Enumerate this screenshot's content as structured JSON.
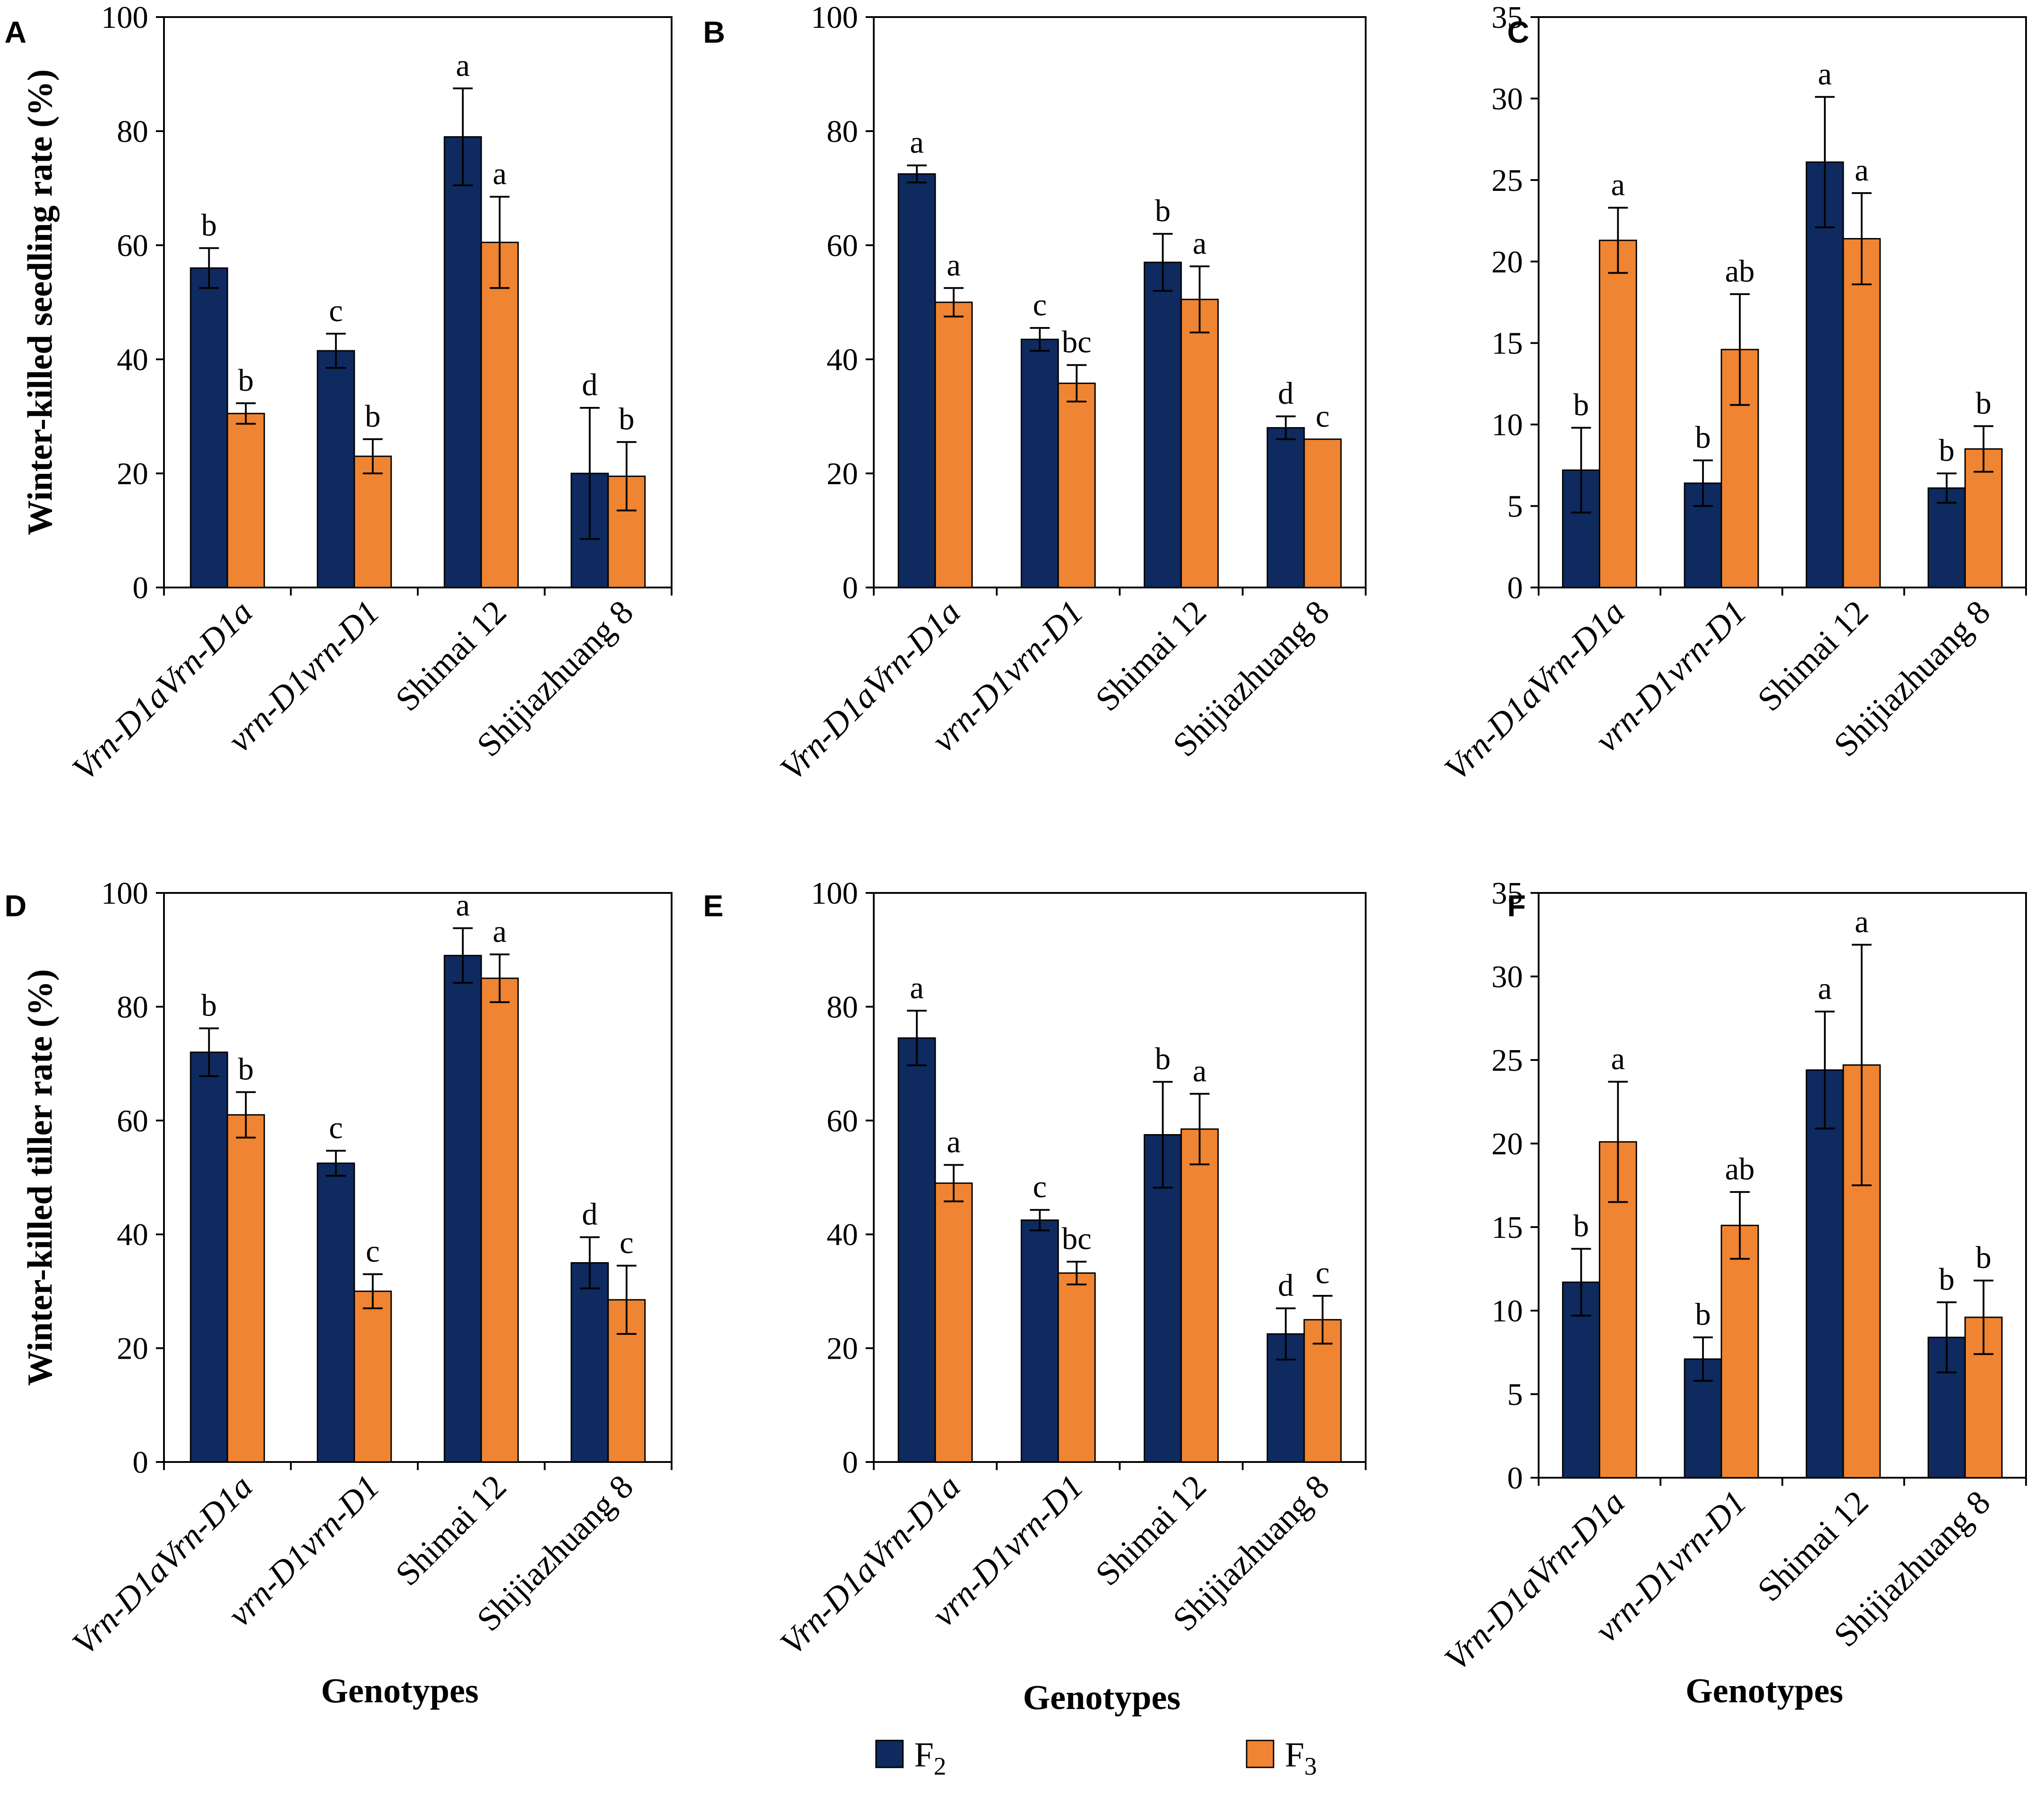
{
  "colors": {
    "F2": "#0e2a5e",
    "F3": "#ef8433"
  },
  "legend": [
    {
      "key": "F2",
      "label": "F",
      "sub": "2"
    },
    {
      "key": "F3",
      "label": "F",
      "sub": "3"
    }
  ],
  "chart_data": [
    {
      "panel": "A",
      "type": "bar",
      "categories": [
        "Vrn-D1aVrn-D1a",
        "vrn-D1vrn-D1",
        "Shimai 12",
        "Shijiazhuang 8"
      ],
      "italic": [
        true,
        true,
        false,
        false
      ],
      "ylabel": "Winter-killed seedling rate (%)",
      "xlabel": "",
      "ylim": [
        0,
        100
      ],
      "yticks": [
        0,
        20,
        40,
        60,
        80,
        100
      ],
      "series": [
        {
          "name": "F2",
          "values": [
            56,
            41.5,
            79,
            20
          ],
          "errors": [
            3.5,
            3,
            8.5,
            11.5
          ],
          "letters": [
            "b",
            "c",
            "a",
            "d"
          ]
        },
        {
          "name": "F3",
          "values": [
            30.5,
            23,
            60.5,
            19.5
          ],
          "errors": [
            1.8,
            3,
            8,
            6
          ],
          "letters": [
            "b",
            "b",
            "a",
            "b"
          ]
        }
      ]
    },
    {
      "panel": "B",
      "type": "bar",
      "categories": [
        "Vrn-D1aVrn-D1a",
        "vrn-D1vrn-D1",
        "Shimai 12",
        "Shijiazhuang 8"
      ],
      "italic": [
        true,
        true,
        false,
        false
      ],
      "ylabel": "",
      "xlabel": "",
      "ylim": [
        0,
        100
      ],
      "yticks": [
        0,
        20,
        40,
        60,
        80,
        100
      ],
      "series": [
        {
          "name": "F2",
          "values": [
            72.5,
            43.5,
            57,
            28
          ],
          "errors": [
            1.5,
            2,
            5,
            2
          ],
          "letters": [
            "a",
            "c",
            "b",
            "d"
          ]
        },
        {
          "name": "F3",
          "values": [
            50,
            35.8,
            50.5,
            26
          ],
          "errors": [
            2.5,
            3.2,
            5.8,
            0
          ],
          "letters": [
            "a",
            "bc",
            "a",
            "c"
          ]
        }
      ]
    },
    {
      "panel": "C",
      "type": "bar",
      "categories": [
        "Vrn-D1aVrn-D1a",
        "vrn-D1vrn-D1",
        "Shimai 12",
        "Shijiazhuang 8"
      ],
      "italic": [
        true,
        true,
        false,
        false
      ],
      "ylabel": "",
      "xlabel": "",
      "ylim": [
        0,
        35
      ],
      "yticks": [
        0,
        5,
        10,
        15,
        20,
        25,
        30,
        35
      ],
      "series": [
        {
          "name": "F2",
          "values": [
            7.2,
            6.4,
            26.1,
            6.1
          ],
          "errors": [
            2.6,
            1.4,
            4,
            0.9
          ],
          "letters": [
            "b",
            "b",
            "a",
            "b"
          ]
        },
        {
          "name": "F3",
          "values": [
            21.3,
            14.6,
            21.4,
            8.5
          ],
          "errors": [
            2,
            3.4,
            2.8,
            1.4
          ],
          "letters": [
            "a",
            "ab",
            "a",
            "b"
          ]
        }
      ]
    },
    {
      "panel": "D",
      "type": "bar",
      "categories": [
        "Vrn-D1aVrn-D1a",
        "vrn-D1vrn-D1",
        "Shimai 12",
        "Shijiazhuang 8"
      ],
      "italic": [
        true,
        true,
        false,
        false
      ],
      "ylabel": "Winter-killed tiller rate (%)",
      "xlabel": "Genotypes",
      "ylim": [
        0,
        100
      ],
      "yticks": [
        0,
        20,
        40,
        60,
        80,
        100
      ],
      "series": [
        {
          "name": "F2",
          "values": [
            72,
            52.5,
            89,
            35
          ],
          "errors": [
            4.2,
            2.2,
            4.8,
            4.5
          ],
          "letters": [
            "b",
            "c",
            "a",
            "d"
          ]
        },
        {
          "name": "F3",
          "values": [
            61,
            30,
            85,
            28.5
          ],
          "errors": [
            4,
            3,
            4.2,
            6
          ],
          "letters": [
            "b",
            "c",
            "a",
            "c"
          ]
        }
      ]
    },
    {
      "panel": "E",
      "type": "bar",
      "categories": [
        "Vrn-D1aVrn-D1a",
        "vrn-D1vrn-D1",
        "Shimai 12",
        "Shijiazhuang 8"
      ],
      "italic": [
        true,
        true,
        false,
        false
      ],
      "ylabel": "",
      "xlabel": "Genotypes",
      "ylim": [
        0,
        100
      ],
      "yticks": [
        0,
        20,
        40,
        60,
        80,
        100
      ],
      "series": [
        {
          "name": "F2",
          "values": [
            74.5,
            42.5,
            57.5,
            22.5
          ],
          "errors": [
            4.8,
            1.8,
            9.3,
            4.5
          ],
          "letters": [
            "a",
            "c",
            "b",
            "d"
          ]
        },
        {
          "name": "F3",
          "values": [
            49,
            33.2,
            58.5,
            25
          ],
          "errors": [
            3.2,
            2,
            6.2,
            4.2
          ],
          "letters": [
            "a",
            "bc",
            "a",
            "c"
          ]
        }
      ]
    },
    {
      "panel": "F",
      "type": "bar",
      "categories": [
        "Vrn-D1aVrn-D1a",
        "vrn-D1vrn-D1",
        "Shimai 12",
        "Shijiazhuang 8"
      ],
      "italic": [
        true,
        true,
        false,
        false
      ],
      "ylabel": "",
      "xlabel": "Genotypes",
      "ylim": [
        0,
        35
      ],
      "yticks": [
        0,
        5,
        10,
        15,
        20,
        25,
        30,
        35
      ],
      "series": [
        {
          "name": "F2",
          "values": [
            11.7,
            7.1,
            24.4,
            8.4
          ],
          "errors": [
            2,
            1.3,
            3.5,
            2.1
          ],
          "letters": [
            "b",
            "b",
            "a",
            "b"
          ]
        },
        {
          "name": "F3",
          "values": [
            20.1,
            15.1,
            24.7,
            9.6
          ],
          "errors": [
            3.6,
            2,
            7.2,
            2.2
          ],
          "letters": [
            "a",
            "ab",
            "a",
            "b"
          ]
        }
      ]
    }
  ]
}
